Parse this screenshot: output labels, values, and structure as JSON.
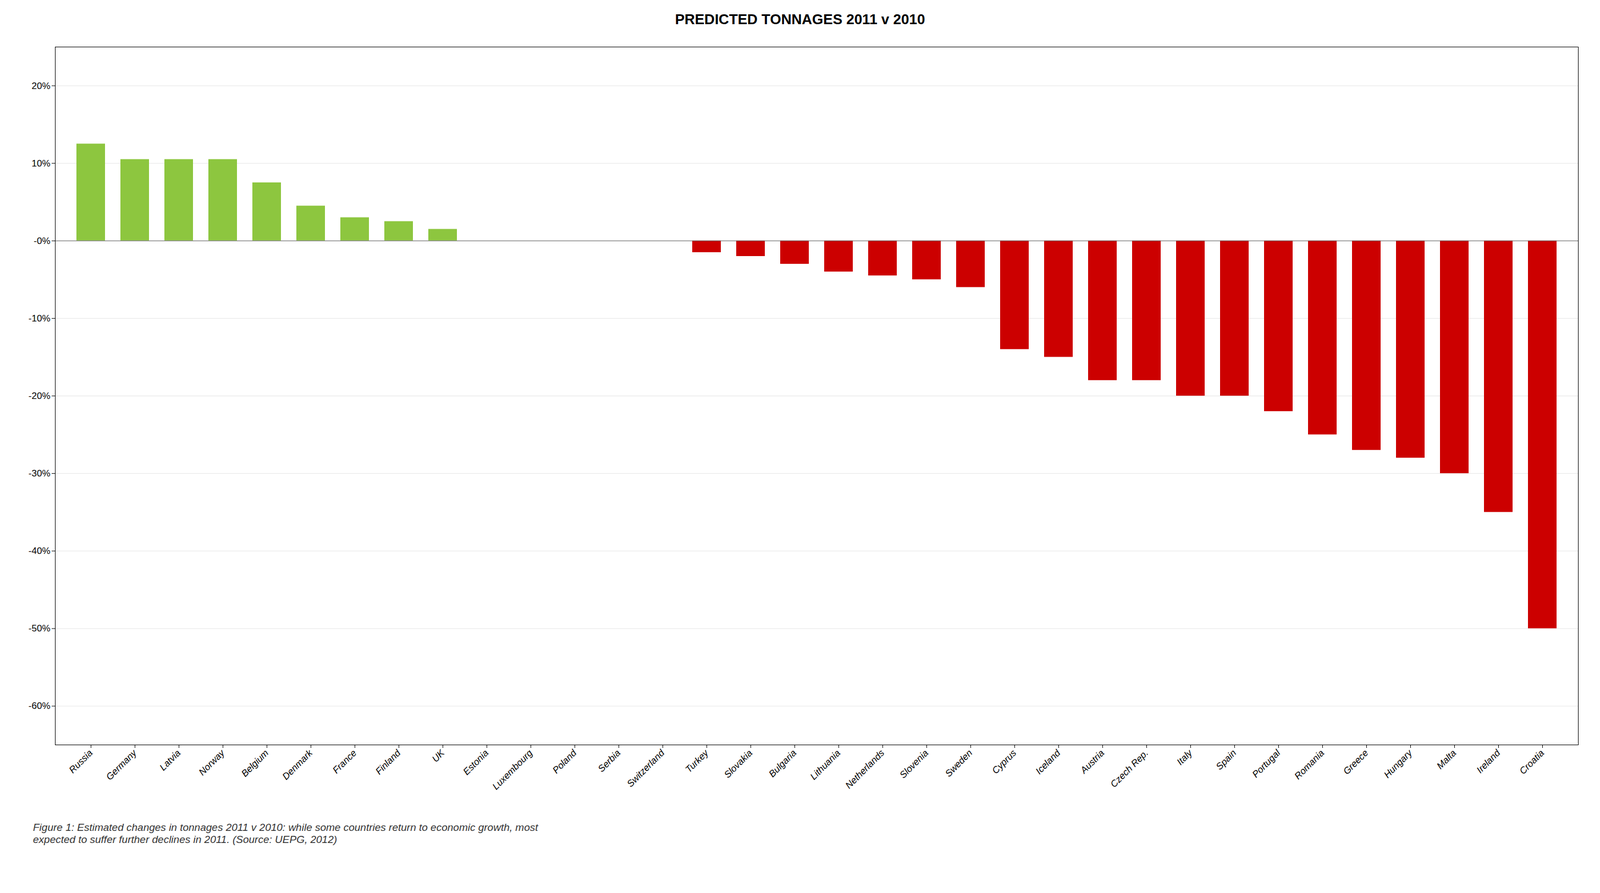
{
  "chart_data": {
    "type": "bar",
    "title": "PREDICTED TONNAGES 2011 v 2010",
    "caption": "Figure 1: Estimated changes in tonnages 2011 v 2010: while some countries return to economic growth, most\nexpected to suffer further declines in 2011. (Source: UEPG, 2012)",
    "categories": [
      "Russia",
      "Germany",
      "Latvia",
      "Norway",
      "Belgium",
      "Denmark",
      "France",
      "Finland",
      "UK",
      "Estonia",
      "Luxembourg",
      "Poland",
      "Serbia",
      "Switzerland",
      "Turkey",
      "Slovakia",
      "Bulgaria",
      "Lithuania",
      "Netherlands",
      "Slovenia",
      "Sweden",
      "Cyprus",
      "Iceland",
      "Austria",
      "Czech Rep.",
      "Italy",
      "Spain",
      "Portugal",
      "Romania",
      "Greece",
      "Hungary",
      "Malta",
      "Ireland",
      "Croatia"
    ],
    "values": [
      12.5,
      10.5,
      10.5,
      10.5,
      7.5,
      4.5,
      3.0,
      2.5,
      1.5,
      0.0,
      0.0,
      0.0,
      0.0,
      0.0,
      -1.5,
      -2.0,
      -3.0,
      -4.0,
      -4.5,
      -5.0,
      -6.0,
      -14.0,
      -15.0,
      -18.0,
      -18.0,
      -20.0,
      -20.0,
      -22.0,
      -25.0,
      -27.0,
      -28.0,
      -30.0,
      -35.0,
      -50.0
    ],
    "colors": [
      "#8DC63F",
      "#8DC63F",
      "#8DC63F",
      "#8DC63F",
      "#8DC63F",
      "#8DC63F",
      "#8DC63F",
      "#8DC63F",
      "#8DC63F",
      "#8DC63F",
      "#8DC63F",
      "#8DC63F",
      "#8DC63F",
      "#8DC63F",
      "#CC0000",
      "#CC0000",
      "#CC0000",
      "#CC0000",
      "#CC0000",
      "#CC0000",
      "#CC0000",
      "#CC0000",
      "#CC0000",
      "#CC0000",
      "#CC0000",
      "#CC0000",
      "#CC0000",
      "#CC0000",
      "#CC0000",
      "#CC0000",
      "#CC0000",
      "#CC0000",
      "#CC0000",
      "#CC0000"
    ],
    "ylim": [
      -65,
      25
    ],
    "yticks": [
      {
        "value": 20,
        "label": "20%"
      },
      {
        "value": 10,
        "label": "10%"
      },
      {
        "value": 0,
        "label": "-0%"
      },
      {
        "value": -10,
        "label": "-10%"
      },
      {
        "value": -20,
        "label": "-20%"
      },
      {
        "value": -30,
        "label": "-30%"
      },
      {
        "value": -40,
        "label": "-40%"
      },
      {
        "value": -50,
        "label": "-50%"
      },
      {
        "value": -60,
        "label": "-60%"
      }
    ],
    "grid": true
  }
}
